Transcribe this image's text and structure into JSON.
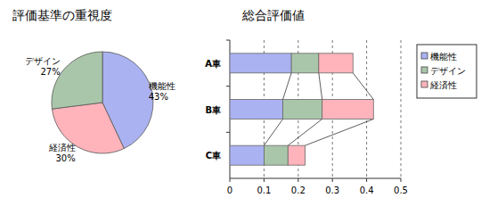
{
  "chart_data": [
    {
      "type": "pie",
      "title": "評価基準の重視度",
      "categories": [
        "機能性",
        "経済性",
        "デザイン"
      ],
      "values": [
        43,
        30,
        27
      ],
      "value_labels": [
        "43%",
        "30%",
        "27%"
      ],
      "colors": [
        "#aab2f2",
        "#ffb4bc",
        "#aac6aa"
      ],
      "data_labels": true
    },
    {
      "type": "bar",
      "title": "総合評価値",
      "orientation": "horizontal",
      "stacked": true,
      "categories": [
        "A車",
        "B車",
        "C車"
      ],
      "series": [
        {
          "name": "機能性",
          "color": "#aab2f2",
          "values": [
            0.18,
            0.155,
            0.1
          ]
        },
        {
          "name": "デザイン",
          "color": "#aac6aa",
          "values": [
            0.08,
            0.115,
            0.07
          ]
        },
        {
          "name": "経済性",
          "color": "#ffb4bc",
          "values": [
            0.1,
            0.15,
            0.05
          ]
        }
      ],
      "xlim": [
        0,
        0.5
      ],
      "xticks": [
        0,
        0.1,
        0.2,
        0.3,
        0.4,
        0.5
      ],
      "grid": true,
      "legend": "right"
    }
  ]
}
